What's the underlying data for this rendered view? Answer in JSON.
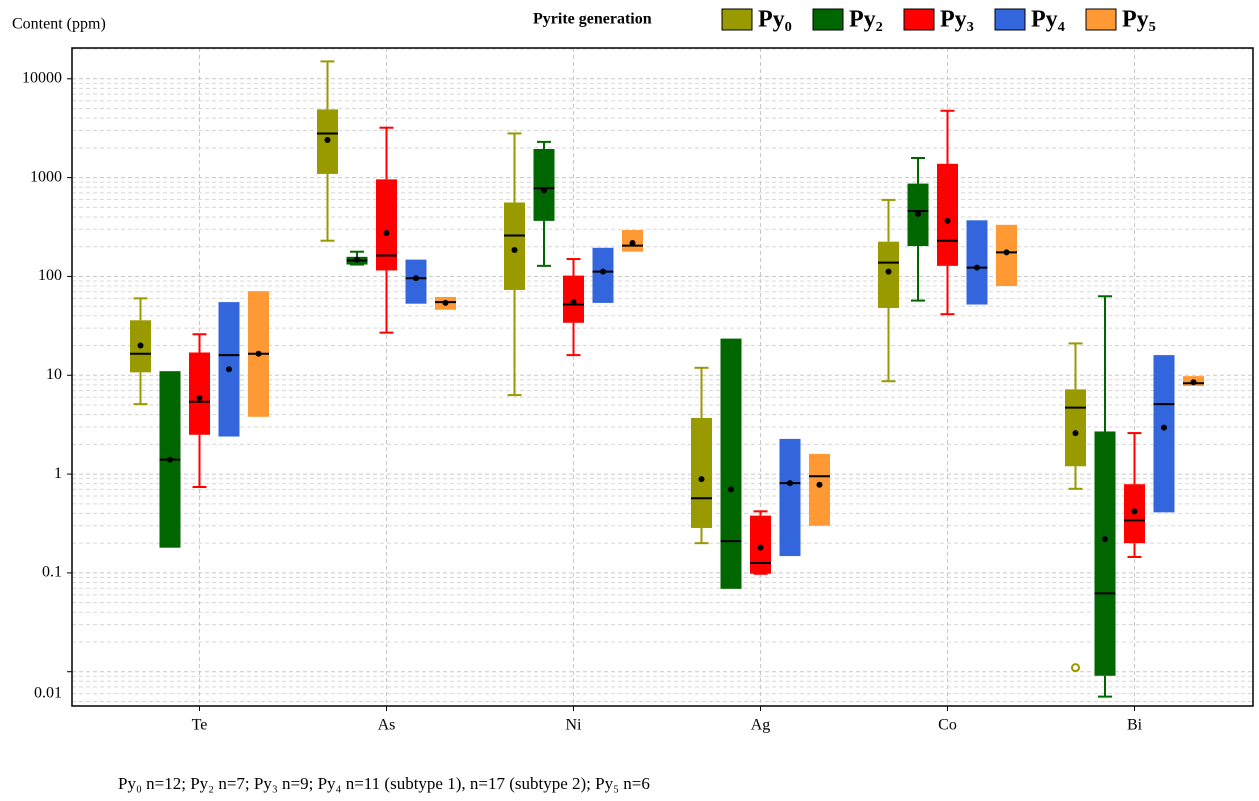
{
  "chart_data": {
    "type": "box",
    "y_axis_label": "Content (ppm)",
    "legend_title": "Pyrite generation",
    "footnote": "Py₀ n=12; Py₂ n=7; Py₃ n=9; Py₄ n=11 (subtype 1), n=17 (subtype 2); Py₅ n=6",
    "categories": [
      "Te",
      "As",
      "Ni",
      "Ag",
      "Co",
      "Bi"
    ],
    "log_scale": true,
    "grid": true,
    "ylim": [
      0.0045,
      20500
    ],
    "yticks": [
      0.01,
      0.1,
      1,
      10,
      100,
      1000,
      10000
    ],
    "series": [
      {
        "name": "Py₀",
        "color": "#999900",
        "boxes": [
          {
            "min": 5.1,
            "q1": 10.7,
            "median": 16.5,
            "q3": 36,
            "max": 60,
            "mean": 20
          },
          {
            "min": 230,
            "q1": 1090,
            "median": 2800,
            "q3": 4900,
            "max": 15000,
            "mean": 2400
          },
          {
            "min": 6.3,
            "q1": 73,
            "median": 260,
            "q3": 560,
            "max": 2800,
            "mean": 185
          },
          {
            "min": 0.2,
            "q1": 0.285,
            "median": 0.57,
            "q3": 3.7,
            "max": 11.9,
            "mean": 0.89
          },
          {
            "min": 8.7,
            "q1": 48,
            "median": 138,
            "q3": 225,
            "max": 595,
            "mean": 112
          },
          {
            "min": 0.71,
            "q1": 1.2,
            "median": 4.7,
            "q3": 7.2,
            "max": 21,
            "mean": 2.6,
            "outliers": [
              0.011
            ]
          }
        ]
      },
      {
        "name": "Py₂",
        "color": "#006600",
        "boxes": [
          {
            "min": null,
            "q1": 0.18,
            "median": 1.4,
            "q3": 11,
            "max": null,
            "mean": 1.4
          },
          {
            "min": 132,
            "q1": 132,
            "median": 145,
            "q3": 158,
            "max": 178,
            "mean": 148
          },
          {
            "min": 128,
            "q1": 365,
            "median": 780,
            "q3": 1950,
            "max": 2300,
            "mean": 740
          },
          {
            "min": null,
            "q1": 0.069,
            "median": 0.21,
            "q3": 23.5,
            "max": null,
            "mean": 0.7
          },
          {
            "min": 57,
            "q1": 203,
            "median": 460,
            "q3": 870,
            "max": 1580,
            "mean": 430
          },
          {
            "min": 0.0056,
            "q1": 0.0091,
            "median": 0.062,
            "q3": 2.7,
            "max": 63,
            "mean": 0.22
          }
        ]
      },
      {
        "name": "Py₃",
        "color": "#ff0000",
        "boxes": [
          {
            "min": 0.74,
            "q1": 2.5,
            "median": 5.4,
            "q3": 17,
            "max": 26,
            "mean": 5.9
          },
          {
            "min": 27,
            "q1": 115,
            "median": 163,
            "q3": 960,
            "max": 3200,
            "mean": 275
          },
          {
            "min": 16,
            "q1": 34,
            "median": 52,
            "q3": 102,
            "max": 150,
            "mean": 55
          },
          {
            "min": 0.098,
            "q1": 0.098,
            "median": 0.126,
            "q3": 0.38,
            "max": 0.42,
            "mean": 0.18
          },
          {
            "min": 41.5,
            "q1": 128,
            "median": 230,
            "q3": 1380,
            "max": 4750,
            "mean": 365
          },
          {
            "min": 0.145,
            "q1": 0.2,
            "median": 0.34,
            "q3": 0.79,
            "max": 2.6,
            "mean": 0.42
          }
        ]
      },
      {
        "name": "Py₄",
        "color": "#3366dd",
        "boxes": [
          {
            "min": null,
            "q1": 2.4,
            "median": 16,
            "q3": 55,
            "max": null,
            "mean": 11.5
          },
          {
            "min": null,
            "q1": 53,
            "median": 96,
            "q3": 148,
            "max": null,
            "mean": 96
          },
          {
            "min": null,
            "q1": 54,
            "median": 112,
            "q3": 195,
            "max": null,
            "mean": 112
          },
          {
            "min": null,
            "q1": 0.148,
            "median": 0.81,
            "q3": 2.27,
            "max": null,
            "mean": 0.81
          },
          {
            "min": null,
            "q1": 52,
            "median": 123,
            "q3": 370,
            "max": null,
            "mean": 123
          },
          {
            "min": null,
            "q1": 0.41,
            "median": 5.1,
            "q3": 16,
            "max": null,
            "mean": 2.95
          }
        ]
      },
      {
        "name": "Py₅",
        "color": "#ff9933",
        "boxes": [
          {
            "min": null,
            "q1": 3.8,
            "median": 16.5,
            "q3": 71,
            "max": null,
            "mean": 16.5
          },
          {
            "min": null,
            "q1": 46,
            "median": 55,
            "q3": 62,
            "max": null,
            "mean": 54
          },
          {
            "min": null,
            "q1": 178,
            "median": 205,
            "q3": 295,
            "max": null,
            "mean": 218
          },
          {
            "min": null,
            "q1": 0.3,
            "median": 0.95,
            "q3": 1.6,
            "max": null,
            "mean": 0.78
          },
          {
            "min": null,
            "q1": 80,
            "median": 175,
            "q3": 333,
            "max": null,
            "mean": 175
          },
          {
            "min": null,
            "q1": 7.8,
            "median": 8.3,
            "q3": 9.8,
            "max": null,
            "mean": 8.5
          }
        ]
      }
    ]
  }
}
